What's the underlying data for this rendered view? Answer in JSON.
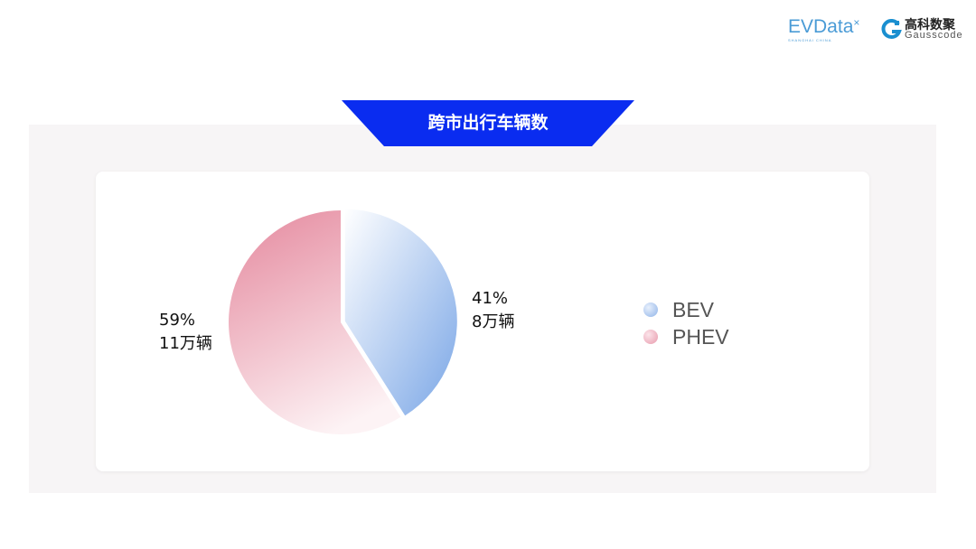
{
  "logos": {
    "evdata": "EVData",
    "evdata_sub": "SHANGHAI CHINA",
    "gauss_cn": "高科数聚",
    "gauss_en": "Gausscode"
  },
  "chart_data": {
    "type": "pie",
    "title": "跨市出行车辆数",
    "slices": [
      {
        "name": "BEV",
        "percent": 41,
        "label_pct": "41%",
        "label_count": "8万辆",
        "value": 8,
        "colors": [
          "#ffffff",
          "#7aa6e6"
        ]
      },
      {
        "name": "PHEV",
        "percent": 59,
        "label_pct": "59%",
        "label_count": "11万辆",
        "value": 11,
        "colors": [
          "#e68fa3",
          "#fdf3f5"
        ]
      }
    ],
    "legend_placement": "right",
    "legend": [
      "BEV",
      "PHEV"
    ]
  },
  "colors": {
    "banner": "#0a2cf0",
    "panel": "#f7f5f6"
  }
}
